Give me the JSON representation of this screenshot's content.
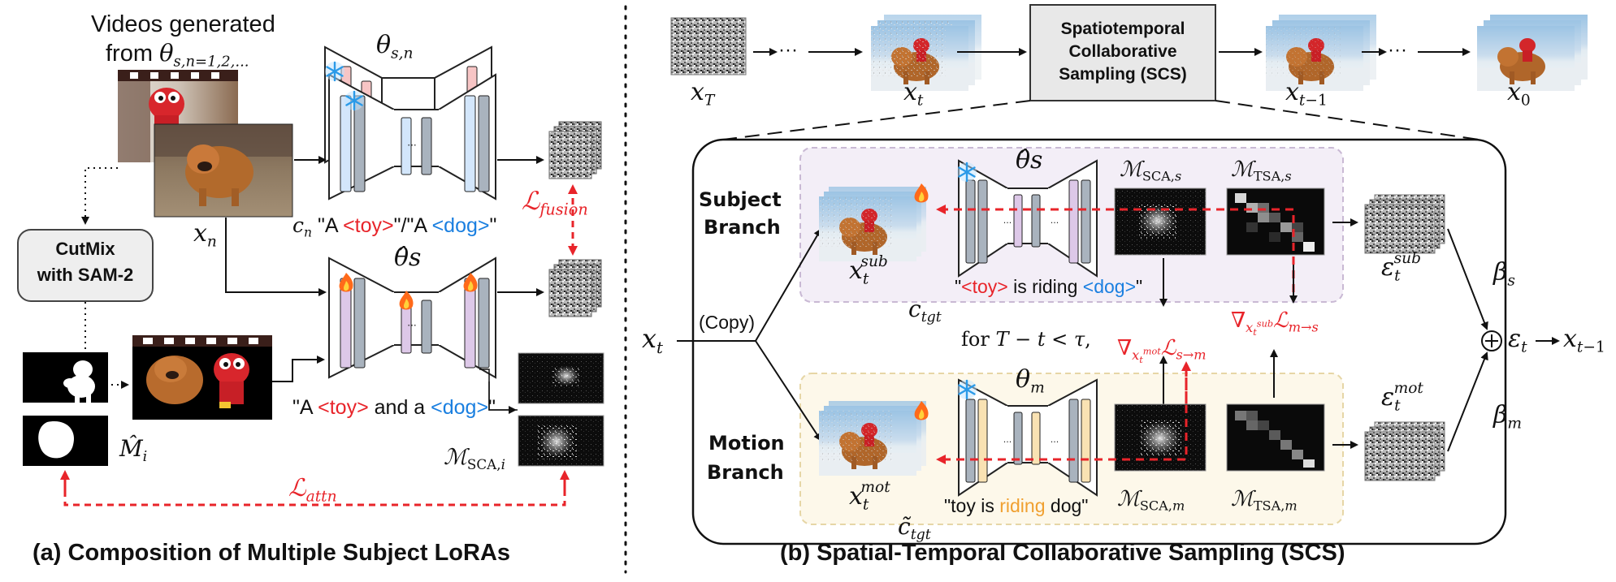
{
  "left_panel": {
    "videos_label_line1": "Videos generated",
    "videos_label_line2": "from θs,n=1,2,...",
    "theta_sn": "θs,n",
    "theta_hat_s": "θ̂s",
    "x_n": "xn",
    "c_n_prompt": "cn \"A <toy>\"/\"A <dog>\"",
    "c_n_prompt_parts": [
      "\"A ",
      "<toy>",
      "\"/\"A ",
      "<dog>",
      "\""
    ],
    "cutmix_line1": "CutMix",
    "cutmix_line2": "with SAM-2",
    "composite_prompt_parts": [
      "\"A ",
      "<toy>",
      " and a ",
      "<dog>",
      "\""
    ],
    "loss_fusion": "ℒfusion",
    "loss_attn": "ℒattn",
    "mask_label": "M̂i",
    "sca_label": "ℳSCA,i",
    "caption": "(a) Composition of Multiple Subject LoRAs"
  },
  "right_panel": {
    "sequence": [
      "xT",
      "xt",
      "xt−1",
      "x0"
    ],
    "ellipsis": "···",
    "scs_box_line1": "Spatiotemporal",
    "scs_box_line2": "Collaborative",
    "scs_box_line3": "Sampling (SCS)",
    "subject_branch_line1": "Subject",
    "subject_branch_line2": "Branch",
    "motion_branch_line1": "Motion",
    "motion_branch_line2": "Branch",
    "copy_label": "(Copy)",
    "x_t_input": "xt",
    "x_t_sub": "xtsub",
    "x_t_mot": "xtmot",
    "theta_hat_s": "θ̂s",
    "theta_m": "θm",
    "c_tgt": "ctgt",
    "c_tilde_tgt": "c̃tgt",
    "subject_prompt_parts": [
      "\"",
      "<toy>",
      " is riding ",
      "<dog>",
      "\""
    ],
    "motion_prompt_parts": [
      "\"toy is ",
      "riding",
      " dog\""
    ],
    "sca_s": "ℳSCA,s",
    "tsa_s": "ℳTSA,s",
    "sca_m": "ℳSCA,m",
    "tsa_m": "ℳTSA,m",
    "condition": "for T − t < τ,",
    "grad_s_to_m": "∇xtmot ℒs→m",
    "grad_m_to_s": "∇xtsub ℒm→s",
    "eps_sub": "εtsub",
    "eps_mot": "εtmot",
    "beta_s": "βs",
    "beta_m": "βm",
    "eps_t": "εt",
    "x_t_minus_1": "xt−1",
    "caption": "(b) Spatial-Temporal Collaborative Sampling (SCS)"
  },
  "colors": {
    "red_loss": "#e8242a",
    "blue_token": "#1a7fe0",
    "orange_token": "#f0a030",
    "subject_branch_bg": "#f3eef7",
    "motion_branch_bg": "#fdf8ea",
    "cutmix_bg": "#eeeeee",
    "scs_bg": "#e8e8e8"
  }
}
